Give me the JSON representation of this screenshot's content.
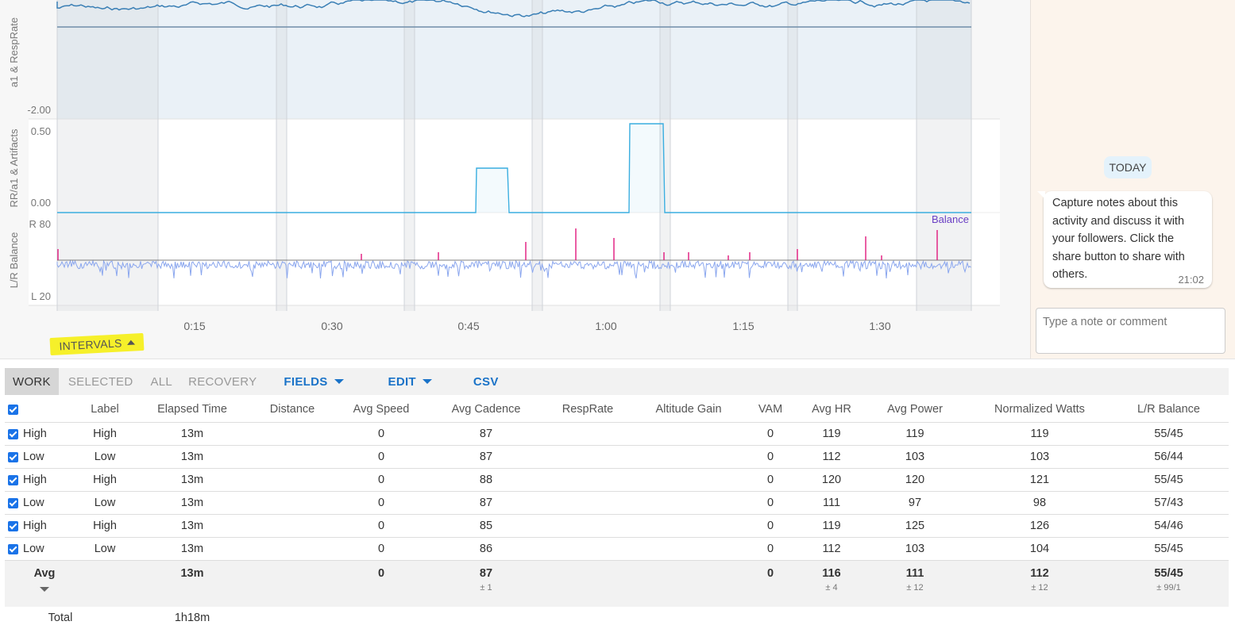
{
  "chart": {
    "panels": [
      {
        "label": "a1 & RespRate",
        "bottom_tick": "-2.00"
      },
      {
        "label": "RR/a1 & Artifacts",
        "ticks": [
          "0.50",
          "0.00"
        ]
      },
      {
        "label": "L/R Balance",
        "ticks": [
          "R 80",
          "L 20"
        ],
        "series_label": "Balance"
      }
    ],
    "x_ticks": [
      "0:15",
      "0:30",
      "0:45",
      "1:00",
      "1:15",
      "1:30"
    ],
    "intervals_toggle": "INTERVALS",
    "colors": {
      "a1": "#3a7fb5",
      "artifacts": "#3aaee0",
      "balance": "#8aa6ee",
      "spikes": "#e0187d",
      "balance_label": "#6a3fc4",
      "highlight": "#f6f02a"
    }
  },
  "sidebar": {
    "today": "TODAY",
    "note": {
      "text": "Capture notes about this activity and discuss it with your followers. Click the share button to share with others.",
      "time": "21:02"
    },
    "comment_placeholder": "Type a note or comment"
  },
  "toolbar": {
    "tabs": [
      "WORK",
      "SELECTED",
      "ALL",
      "RECOVERY"
    ],
    "fields": "FIELDS",
    "edit": "EDIT",
    "csv": "CSV"
  },
  "table": {
    "headers": [
      "Label",
      "Elapsed Time",
      "Distance",
      "Avg Speed",
      "Avg Cadence",
      "RespRate",
      "Altitude Gain",
      "VAM",
      "Avg HR",
      "Avg Power",
      "Normalized Watts",
      "L/R Balance"
    ],
    "rows": [
      {
        "name": "High",
        "label": "High",
        "elapsed": "13m",
        "distance": "",
        "speed": "0",
        "cadence": "87",
        "resp": "",
        "alt": "",
        "vam": "0",
        "hr": "119",
        "power": "119",
        "np": "119",
        "lr": "55/45"
      },
      {
        "name": "Low",
        "label": "Low",
        "elapsed": "13m",
        "distance": "",
        "speed": "0",
        "cadence": "87",
        "resp": "",
        "alt": "",
        "vam": "0",
        "hr": "112",
        "power": "103",
        "np": "103",
        "lr": "56/44"
      },
      {
        "name": "High",
        "label": "High",
        "elapsed": "13m",
        "distance": "",
        "speed": "0",
        "cadence": "88",
        "resp": "",
        "alt": "",
        "vam": "0",
        "hr": "120",
        "power": "120",
        "np": "121",
        "lr": "55/45"
      },
      {
        "name": "Low",
        "label": "Low",
        "elapsed": "13m",
        "distance": "",
        "speed": "0",
        "cadence": "87",
        "resp": "",
        "alt": "",
        "vam": "0",
        "hr": "111",
        "power": "97",
        "np": "98",
        "lr": "57/43"
      },
      {
        "name": "High",
        "label": "High",
        "elapsed": "13m",
        "distance": "",
        "speed": "0",
        "cadence": "85",
        "resp": "",
        "alt": "",
        "vam": "0",
        "hr": "119",
        "power": "125",
        "np": "126",
        "lr": "54/46"
      },
      {
        "name": "Low",
        "label": "Low",
        "elapsed": "13m",
        "distance": "",
        "speed": "0",
        "cadence": "86",
        "resp": "",
        "alt": "",
        "vam": "0",
        "hr": "112",
        "power": "103",
        "np": "104",
        "lr": "55/45"
      }
    ],
    "avg": {
      "label": "Avg",
      "elapsed": "13m",
      "speed": "0",
      "cadence": "87",
      "cadence_sd": "± 1",
      "vam": "0",
      "hr": "116",
      "hr_sd": "± 4",
      "power": "111",
      "power_sd": "± 12",
      "np": "112",
      "np_sd": "± 12",
      "lr": "55/45",
      "lr_sd": "± 99/1"
    },
    "total": {
      "label": "Total",
      "elapsed": "1h18m"
    }
  }
}
